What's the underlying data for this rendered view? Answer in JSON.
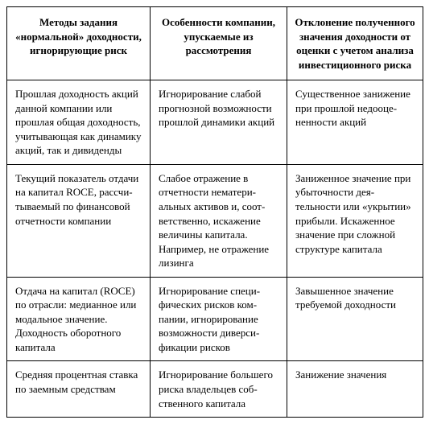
{
  "table": {
    "headers": [
      "Методы задания «нормальной» доходности, игнорирующие риск",
      "Особенности компании, упускаемые из рассмотрения",
      "Отклонение полученного значения доходности от оценки с учетом анализа инвестиционного риска"
    ],
    "rows": [
      {
        "c1": "Прошлая доходность акций данной компании или прошлая общая доход­ность, учитывающая как динамику акций, так и дивиденды",
        "c2": "Игнорирование слабой прогнозной возможно­сти прошлой динамики акций",
        "c3": "Существенное занижение при прошлой недооце­ненности акций"
      },
      {
        "c1": "Текущий показатель отдачи на капитал ROCE, рассчи­тываемый по финансовой отчетности компании",
        "c2": "Слабое отражение в отчетности нематери­альных активов и, соот­ветственно, искажение величины капитала. Например, не отражение лизинга",
        "c3": "Заниженное значение при убыточности дея­тельности или «укрытии» прибыли. Искаженное значение при сложной структуре капитала"
      },
      {
        "c1": "Отдача на капитал (ROCE) по отрасли: медианное или модальное значение. Доходность оборотного капитала",
        "c2": "Игнорирование специ­фических рисков ком­пании, игнорирование возможности диверси­фикации рисков",
        "c3": "Завышенное значение требуемой доходности"
      },
      {
        "c1": "Средняя процентная став­ка по заемным средствам",
        "c2": "Игнорирование больше­го риска владельцев соб­ственного капитала",
        "c3": "Занижение значения"
      }
    ]
  }
}
